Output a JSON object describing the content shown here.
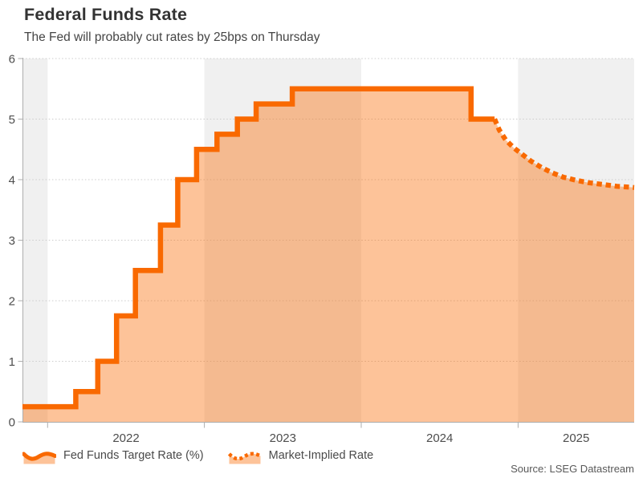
{
  "page": {
    "title": "Federal Funds Rate",
    "subtitle": "The Fed will probably cut rates by 25bps on Thursday",
    "source": "Source: LSEG Datastream"
  },
  "legend": {
    "position": "bottom-left",
    "items": [
      {
        "label": "Fed Funds Target Rate (%)",
        "swatch": "solid-area"
      },
      {
        "label": "Market-Implied Rate",
        "swatch": "dotted-area"
      }
    ]
  },
  "chart_data": {
    "type": "area",
    "title": "Federal Funds Rate",
    "subtitle": "The Fed will probably cut rates by 25bps on Thursday",
    "source": "Source: LSEG Datastream",
    "xlabel": "",
    "ylabel": "",
    "grid": "dotted horizontal gridlines",
    "legend_position": "bottom-left",
    "x_ticks": [
      2022,
      2023,
      2024,
      2025
    ],
    "y_ticks": [
      0,
      1,
      2,
      3,
      4,
      5,
      6
    ],
    "x_range": [
      2021.84,
      2025.74
    ],
    "y_range": [
      0,
      6
    ],
    "shaded_year_bands": [
      [
        2021.84,
        2022
      ],
      [
        2023,
        2024
      ],
      [
        2025,
        2025.74
      ]
    ],
    "series": [
      {
        "name": "Fed Funds Target Rate (%)",
        "type": "step-area",
        "line_style": "solid",
        "points": [
          [
            2021.84,
            0.25
          ],
          [
            2022.18,
            0.5
          ],
          [
            2022.32,
            1.0
          ],
          [
            2022.44,
            1.75
          ],
          [
            2022.56,
            2.5
          ],
          [
            2022.72,
            3.25
          ],
          [
            2022.83,
            4.0
          ],
          [
            2022.95,
            4.5
          ],
          [
            2023.08,
            4.75
          ],
          [
            2023.21,
            5.0
          ],
          [
            2023.33,
            5.25
          ],
          [
            2023.56,
            5.5
          ],
          [
            2024.7,
            5.0
          ],
          [
            2024.85,
            5.0
          ]
        ]
      },
      {
        "name": "Market-Implied Rate",
        "type": "line-area",
        "line_style": "dotted",
        "points": [
          [
            2024.85,
            5.0
          ],
          [
            2024.88,
            4.82
          ],
          [
            2024.92,
            4.66
          ],
          [
            2024.97,
            4.53
          ],
          [
            2025.02,
            4.43
          ],
          [
            2025.08,
            4.31
          ],
          [
            2025.15,
            4.2
          ],
          [
            2025.22,
            4.11
          ],
          [
            2025.29,
            4.04
          ],
          [
            2025.37,
            3.99
          ],
          [
            2025.45,
            3.95
          ],
          [
            2025.54,
            3.92
          ],
          [
            2025.63,
            3.89
          ],
          [
            2025.74,
            3.87
          ]
        ]
      }
    ],
    "colors": {
      "line": "#F96900",
      "fill": "rgba(249,106,0,0.40)",
      "band": "#F0F0F0",
      "grid": "#CCCCCC",
      "axis": "#ADADAD",
      "title_text": "#333333",
      "subtitle_text": "#454545",
      "tick_text": "#4D4D4D",
      "source_text": "#595959"
    }
  }
}
